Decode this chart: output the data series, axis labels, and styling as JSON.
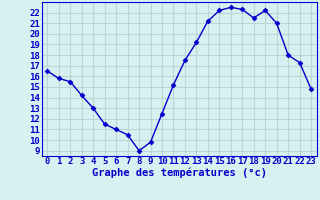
{
  "hours": [
    0,
    1,
    2,
    3,
    4,
    5,
    6,
    7,
    8,
    9,
    10,
    11,
    12,
    13,
    14,
    15,
    16,
    17,
    18,
    19,
    20,
    21,
    22,
    23
  ],
  "temperatures": [
    16.5,
    15.8,
    15.5,
    14.2,
    13.0,
    11.5,
    11.0,
    10.5,
    9.0,
    9.8,
    12.5,
    15.2,
    17.5,
    19.2,
    21.2,
    22.2,
    22.5,
    22.3,
    21.5,
    22.2,
    21.0,
    18.0,
    17.3,
    14.8
  ],
  "line_color": "#0000cc",
  "marker": "D",
  "marker_size": 2.5,
  "line_width": 1.0,
  "xlabel": "Graphe des températures (°c)",
  "xlabel_fontsize": 7.5,
  "ylabel_ticks": [
    9,
    10,
    11,
    12,
    13,
    14,
    15,
    16,
    17,
    18,
    19,
    20,
    21,
    22
  ],
  "xlim": [
    -0.5,
    23.5
  ],
  "ylim": [
    8.5,
    23.0
  ],
  "bg_color": "#d8f0f0",
  "grid_color": "#b8d8d8",
  "tick_color": "#0000cc",
  "tick_fontsize": 6.5,
  "figwidth": 3.2,
  "figheight": 2.0,
  "dpi": 100
}
